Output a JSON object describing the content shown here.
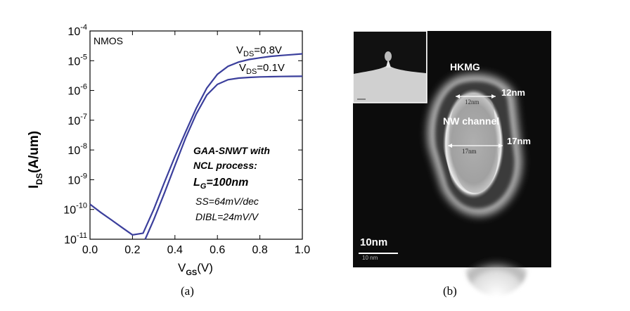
{
  "chart_data": {
    "type": "line",
    "yscale": "log",
    "xlim": [
      0.0,
      1.0
    ],
    "ylim": [
      1e-11,
      0.0001
    ],
    "x_ticks": [
      "0.0",
      "0.2",
      "0.4",
      "0.6",
      "0.8",
      "1.0"
    ],
    "y_ticks": [
      {
        "base": "10",
        "exp": "-4"
      },
      {
        "base": "10",
        "exp": "-5"
      },
      {
        "base": "10",
        "exp": "-6"
      },
      {
        "base": "10",
        "exp": "-7"
      },
      {
        "base": "10",
        "exp": "-8"
      },
      {
        "base": "10",
        "exp": "-9"
      },
      {
        "base": "10",
        "exp": "-10"
      },
      {
        "base": "10",
        "exp": "-11"
      }
    ],
    "xlabel": {
      "main": "V",
      "sub": "GS",
      "unit": "(V)"
    },
    "ylabel": {
      "main": "I",
      "sub": "DS",
      "unit": "(A/um)"
    },
    "line_color": "#3b3f9c",
    "series": [
      {
        "label": {
          "main": "V",
          "sub": "DS",
          "value": "=0.8V"
        },
        "x": [
          0.0,
          0.05,
          0.1,
          0.15,
          0.2,
          0.25,
          0.3,
          0.35,
          0.4,
          0.45,
          0.5,
          0.55,
          0.6,
          0.65,
          0.7,
          0.75,
          0.8,
          0.85,
          0.9,
          0.95,
          1.0
        ],
        "y": [
          1.5e-10,
          8e-11,
          4.5e-11,
          2.5e-11,
          1.4e-11,
          1.6e-11,
          1e-10,
          8e-10,
          6e-09,
          4e-08,
          2.5e-07,
          1.2e-06,
          3.5e-06,
          6.5e-06,
          9e-06,
          1.1e-05,
          1.25e-05,
          1.4e-05,
          1.5e-05,
          1.6e-05,
          1.7e-05
        ]
      },
      {
        "label": {
          "main": "V",
          "sub": "DS",
          "value": "=0.1V"
        },
        "x": [
          0.26,
          0.3,
          0.35,
          0.4,
          0.45,
          0.5,
          0.55,
          0.6,
          0.65,
          0.7,
          0.75,
          0.8,
          0.85,
          0.9,
          0.95,
          1.0
        ],
        "y": [
          1e-11,
          4.5e-11,
          3.5e-10,
          3e-09,
          2.5e-08,
          1.6e-07,
          7e-07,
          1.6e-06,
          2.3e-06,
          2.6e-06,
          2.75e-06,
          2.85e-06,
          2.9e-06,
          2.95e-06,
          2.98e-06,
          3e-06
        ]
      }
    ]
  },
  "chart_text": {
    "device": "NMOS",
    "info_lines": [
      "GAA-SNWT with",
      "NCL process:"
    ],
    "lg": {
      "main": "L",
      "sub": "G",
      "value": "=100nm"
    },
    "ss": "SS=64mV/dec",
    "dibl": "DIBL=24mV/V"
  },
  "tem": {
    "hkmg": "HKMG",
    "top_width": "12nm",
    "top_width_inner": "12nm",
    "channel": "NW channel",
    "bottom_width": "17nm",
    "bottom_width_inner": "17nm",
    "scale": "10nm",
    "scale_bar_text": "10 nm"
  },
  "captions": {
    "a": "(a)",
    "b": "(b)"
  }
}
